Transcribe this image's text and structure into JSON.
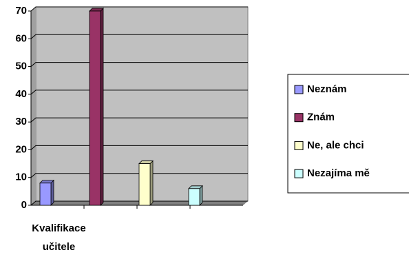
{
  "chart_data": {
    "type": "bar",
    "categories": [
      "Kvalifikace učitele"
    ],
    "series": [
      {
        "name": "Neznám",
        "color": "#9999ff",
        "values": [
          8
        ]
      },
      {
        "name": "Znám",
        "color": "#993366",
        "values": [
          70
        ]
      },
      {
        "name": "Ne, ale chci",
        "color": "#ffffcc",
        "values": [
          15
        ]
      },
      {
        "name": "Nezajíma mě",
        "color": "#ccffff",
        "values": [
          6
        ]
      }
    ],
    "ylim": [
      0,
      70
    ],
    "yticks": [
      0,
      10,
      20,
      30,
      40,
      50,
      60,
      70
    ],
    "grid": true,
    "legend": "right"
  }
}
